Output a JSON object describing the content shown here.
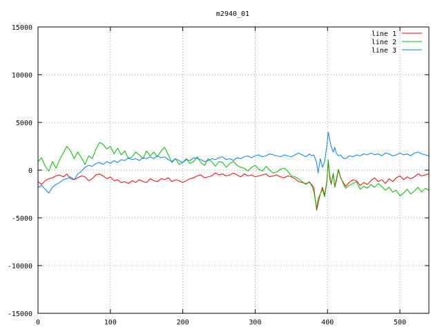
{
  "chart_data": {
    "type": "line",
    "title": "m2940_01",
    "xlabel": "",
    "ylabel": "",
    "xlim": [
      0,
      540
    ],
    "ylim": [
      -15000,
      15000
    ],
    "x_ticks": [
      0,
      100,
      200,
      300,
      400,
      500
    ],
    "y_ticks": [
      -15000,
      -10000,
      -5000,
      0,
      5000,
      10000,
      15000
    ],
    "grid": true,
    "legend_position": "top-right",
    "series": [
      {
        "name": "line 1",
        "color": "#ff0000",
        "x": [
          0,
          5,
          10,
          15,
          20,
          25,
          30,
          35,
          40,
          45,
          50,
          55,
          60,
          65,
          70,
          75,
          80,
          85,
          90,
          95,
          100,
          105,
          110,
          115,
          120,
          125,
          130,
          135,
          140,
          145,
          150,
          155,
          160,
          165,
          170,
          175,
          180,
          185,
          190,
          195,
          200,
          205,
          210,
          215,
          220,
          225,
          230,
          235,
          240,
          245,
          250,
          255,
          260,
          265,
          270,
          275,
          280,
          285,
          290,
          295,
          300,
          305,
          310,
          315,
          320,
          325,
          330,
          335,
          340,
          345,
          350,
          355,
          360,
          365,
          370,
          375,
          378,
          381,
          383,
          385,
          387,
          390,
          393,
          396,
          399,
          401,
          403,
          405,
          408,
          410,
          412,
          415,
          418,
          421,
          425,
          430,
          435,
          440,
          445,
          450,
          455,
          460,
          465,
          470,
          475,
          480,
          485,
          490,
          495,
          500,
          505,
          510,
          515,
          520,
          525,
          530,
          535,
          540
        ],
        "values": [
          -1200,
          -1500,
          -1100,
          -900,
          -800,
          -600,
          -500,
          -700,
          -400,
          -900,
          -1000,
          -800,
          -600,
          -700,
          -1100,
          -900,
          -500,
          -400,
          -600,
          -900,
          -700,
          -1100,
          -1000,
          -1300,
          -1200,
          -1400,
          -1100,
          -1300,
          -1000,
          -1200,
          -1300,
          -900,
          -1100,
          -1200,
          -900,
          -1000,
          -800,
          -1200,
          -1000,
          -1100,
          -1300,
          -1100,
          -900,
          -800,
          -600,
          -500,
          -800,
          -700,
          -600,
          -300,
          -500,
          -400,
          -600,
          -500,
          -300,
          -500,
          -700,
          -400,
          -600,
          -500,
          -700,
          -600,
          -500,
          -400,
          -700,
          -600,
          -500,
          -700,
          -800,
          -600,
          -700,
          -900,
          -1200,
          -1300,
          -1400,
          -1300,
          -1500,
          -1800,
          -3000,
          -4200,
          -3500,
          -2500,
          -1800,
          -2600,
          -1200,
          1000,
          -800,
          -1500,
          -400,
          -1800,
          -1200,
          0,
          -800,
          -1200,
          -1700,
          -1300,
          -1000,
          -1100,
          -1600,
          -1300,
          -1500,
          -1100,
          -800,
          -1200,
          -1000,
          -1400,
          -900,
          -1200,
          -800,
          -600,
          -1000,
          -700,
          -900,
          -700,
          -400,
          -600,
          -500,
          -400
        ]
      },
      {
        "name": "line 2",
        "color": "#00c000",
        "x": [
          0,
          5,
          10,
          15,
          20,
          25,
          30,
          35,
          40,
          45,
          50,
          55,
          60,
          65,
          70,
          75,
          80,
          85,
          90,
          95,
          100,
          105,
          110,
          115,
          120,
          125,
          130,
          135,
          140,
          145,
          150,
          155,
          160,
          165,
          170,
          175,
          180,
          185,
          190,
          195,
          200,
          205,
          210,
          215,
          220,
          225,
          230,
          235,
          240,
          245,
          250,
          255,
          260,
          265,
          270,
          275,
          280,
          285,
          290,
          295,
          300,
          305,
          310,
          315,
          320,
          325,
          330,
          335,
          340,
          345,
          350,
          355,
          360,
          365,
          370,
          375,
          378,
          381,
          383,
          385,
          387,
          390,
          393,
          396,
          399,
          401,
          403,
          405,
          408,
          410,
          412,
          415,
          418,
          421,
          425,
          430,
          435,
          440,
          445,
          450,
          455,
          460,
          465,
          470,
          475,
          480,
          485,
          490,
          495,
          500,
          505,
          510,
          515,
          520,
          525,
          530,
          535,
          540
        ],
        "values": [
          900,
          1300,
          400,
          -100,
          900,
          200,
          1100,
          1800,
          2500,
          2000,
          1200,
          1900,
          1300,
          600,
          1500,
          1200,
          2200,
          2900,
          2700,
          2200,
          2500,
          1700,
          2300,
          1600,
          2000,
          1200,
          1400,
          1900,
          1600,
          1200,
          2000,
          1500,
          1900,
          1400,
          2000,
          2400,
          1600,
          800,
          1200,
          600,
          800,
          1200,
          700,
          900,
          1400,
          800,
          500,
          1200,
          900,
          400,
          900,
          800,
          300,
          700,
          900,
          500,
          300,
          200,
          -100,
          300,
          500,
          100,
          -100,
          400,
          0,
          -300,
          -200,
          100,
          200,
          -100,
          -600,
          -700,
          -900,
          -1200,
          -1500,
          -1200,
          -1600,
          -2200,
          -3100,
          -4000,
          -3000,
          -2500,
          -2000,
          -2800,
          -1300,
          1100,
          -500,
          -1400,
          -300,
          -1700,
          -1000,
          100,
          -700,
          -1300,
          -1900,
          -1600,
          -1400,
          -1200,
          -2000,
          -1700,
          -1900,
          -1500,
          -1800,
          -1400,
          -1700,
          -2100,
          -1800,
          -2300,
          -2100,
          -2700,
          -2400,
          -2000,
          -2500,
          -2200,
          -1800,
          -2300,
          -1900,
          -2100
        ]
      },
      {
        "name": "line 3",
        "color": "#0080ff",
        "x": [
          0,
          5,
          10,
          15,
          20,
          25,
          30,
          35,
          40,
          45,
          50,
          55,
          60,
          65,
          70,
          75,
          80,
          85,
          90,
          95,
          100,
          105,
          110,
          115,
          120,
          125,
          130,
          135,
          140,
          145,
          150,
          155,
          160,
          165,
          170,
          175,
          180,
          185,
          190,
          195,
          200,
          205,
          210,
          215,
          220,
          225,
          230,
          235,
          240,
          245,
          250,
          255,
          260,
          265,
          270,
          275,
          280,
          285,
          290,
          295,
          300,
          305,
          310,
          315,
          320,
          325,
          330,
          335,
          340,
          345,
          350,
          355,
          360,
          365,
          370,
          375,
          378,
          381,
          383,
          385,
          387,
          390,
          393,
          396,
          399,
          401,
          403,
          405,
          408,
          410,
          412,
          415,
          418,
          421,
          425,
          430,
          435,
          440,
          445,
          450,
          455,
          460,
          465,
          470,
          475,
          480,
          485,
          490,
          495,
          500,
          505,
          510,
          515,
          520,
          525,
          530,
          535,
          540
        ],
        "values": [
          -1800,
          -1600,
          -2000,
          -2400,
          -1800,
          -1500,
          -1300,
          -1000,
          -900,
          -700,
          -1000,
          -400,
          -100,
          300,
          500,
          400,
          700,
          800,
          600,
          900,
          700,
          1000,
          800,
          1100,
          1000,
          1300,
          1100,
          1200,
          1000,
          1300,
          1200,
          1400,
          1200,
          1500,
          1300,
          1400,
          1100,
          900,
          1200,
          1000,
          800,
          1100,
          1000,
          1300,
          1200,
          1100,
          900,
          1000,
          1200,
          1100,
          1300,
          1400,
          1100,
          1200,
          1000,
          1300,
          1200,
          1400,
          1500,
          1300,
          1500,
          1600,
          1400,
          1500,
          1700,
          1600,
          1500,
          1400,
          1600,
          1500,
          1400,
          1600,
          1800,
          1600,
          1400,
          1700,
          1500,
          1600,
          1200,
          800,
          -300,
          1200,
          300,
          900,
          2500,
          4000,
          3200,
          2500,
          1900,
          2400,
          1800,
          1500,
          1600,
          1300,
          1200,
          1500,
          1400,
          1600,
          1500,
          1700,
          1600,
          1800,
          1600,
          1700,
          1500,
          1800,
          1700,
          1500,
          1600,
          1800,
          1600,
          1700,
          1500,
          1800,
          1900,
          1700,
          1600,
          1500
        ]
      }
    ]
  }
}
